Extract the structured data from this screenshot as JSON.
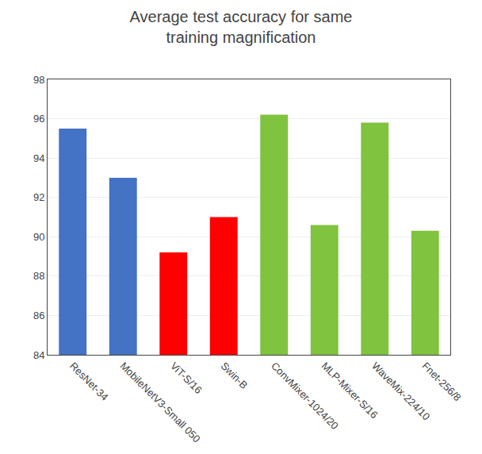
{
  "chart_data": {
    "type": "bar",
    "title": "Average test accuracy for same\ntraining magnification",
    "categories": [
      "ResNet-34",
      "MobileNetV3-Small 050",
      "ViT-S/16",
      "Swin-B",
      "ConvMixer-1024/20",
      "MLP-Mixer-S/16",
      "WaveMix-224/10",
      "Fnet-256/8"
    ],
    "values": [
      95.5,
      93.0,
      89.2,
      91.0,
      96.2,
      90.6,
      95.8,
      90.3
    ],
    "colors": [
      "#4472c4",
      "#4472c4",
      "#ff0000",
      "#ff0000",
      "#7fc33e",
      "#7fc33e",
      "#7fc33e",
      "#7fc33e"
    ],
    "ylim": [
      84,
      98
    ],
    "yticks": [
      84,
      86,
      88,
      90,
      92,
      94,
      96,
      98
    ],
    "grid": true
  }
}
